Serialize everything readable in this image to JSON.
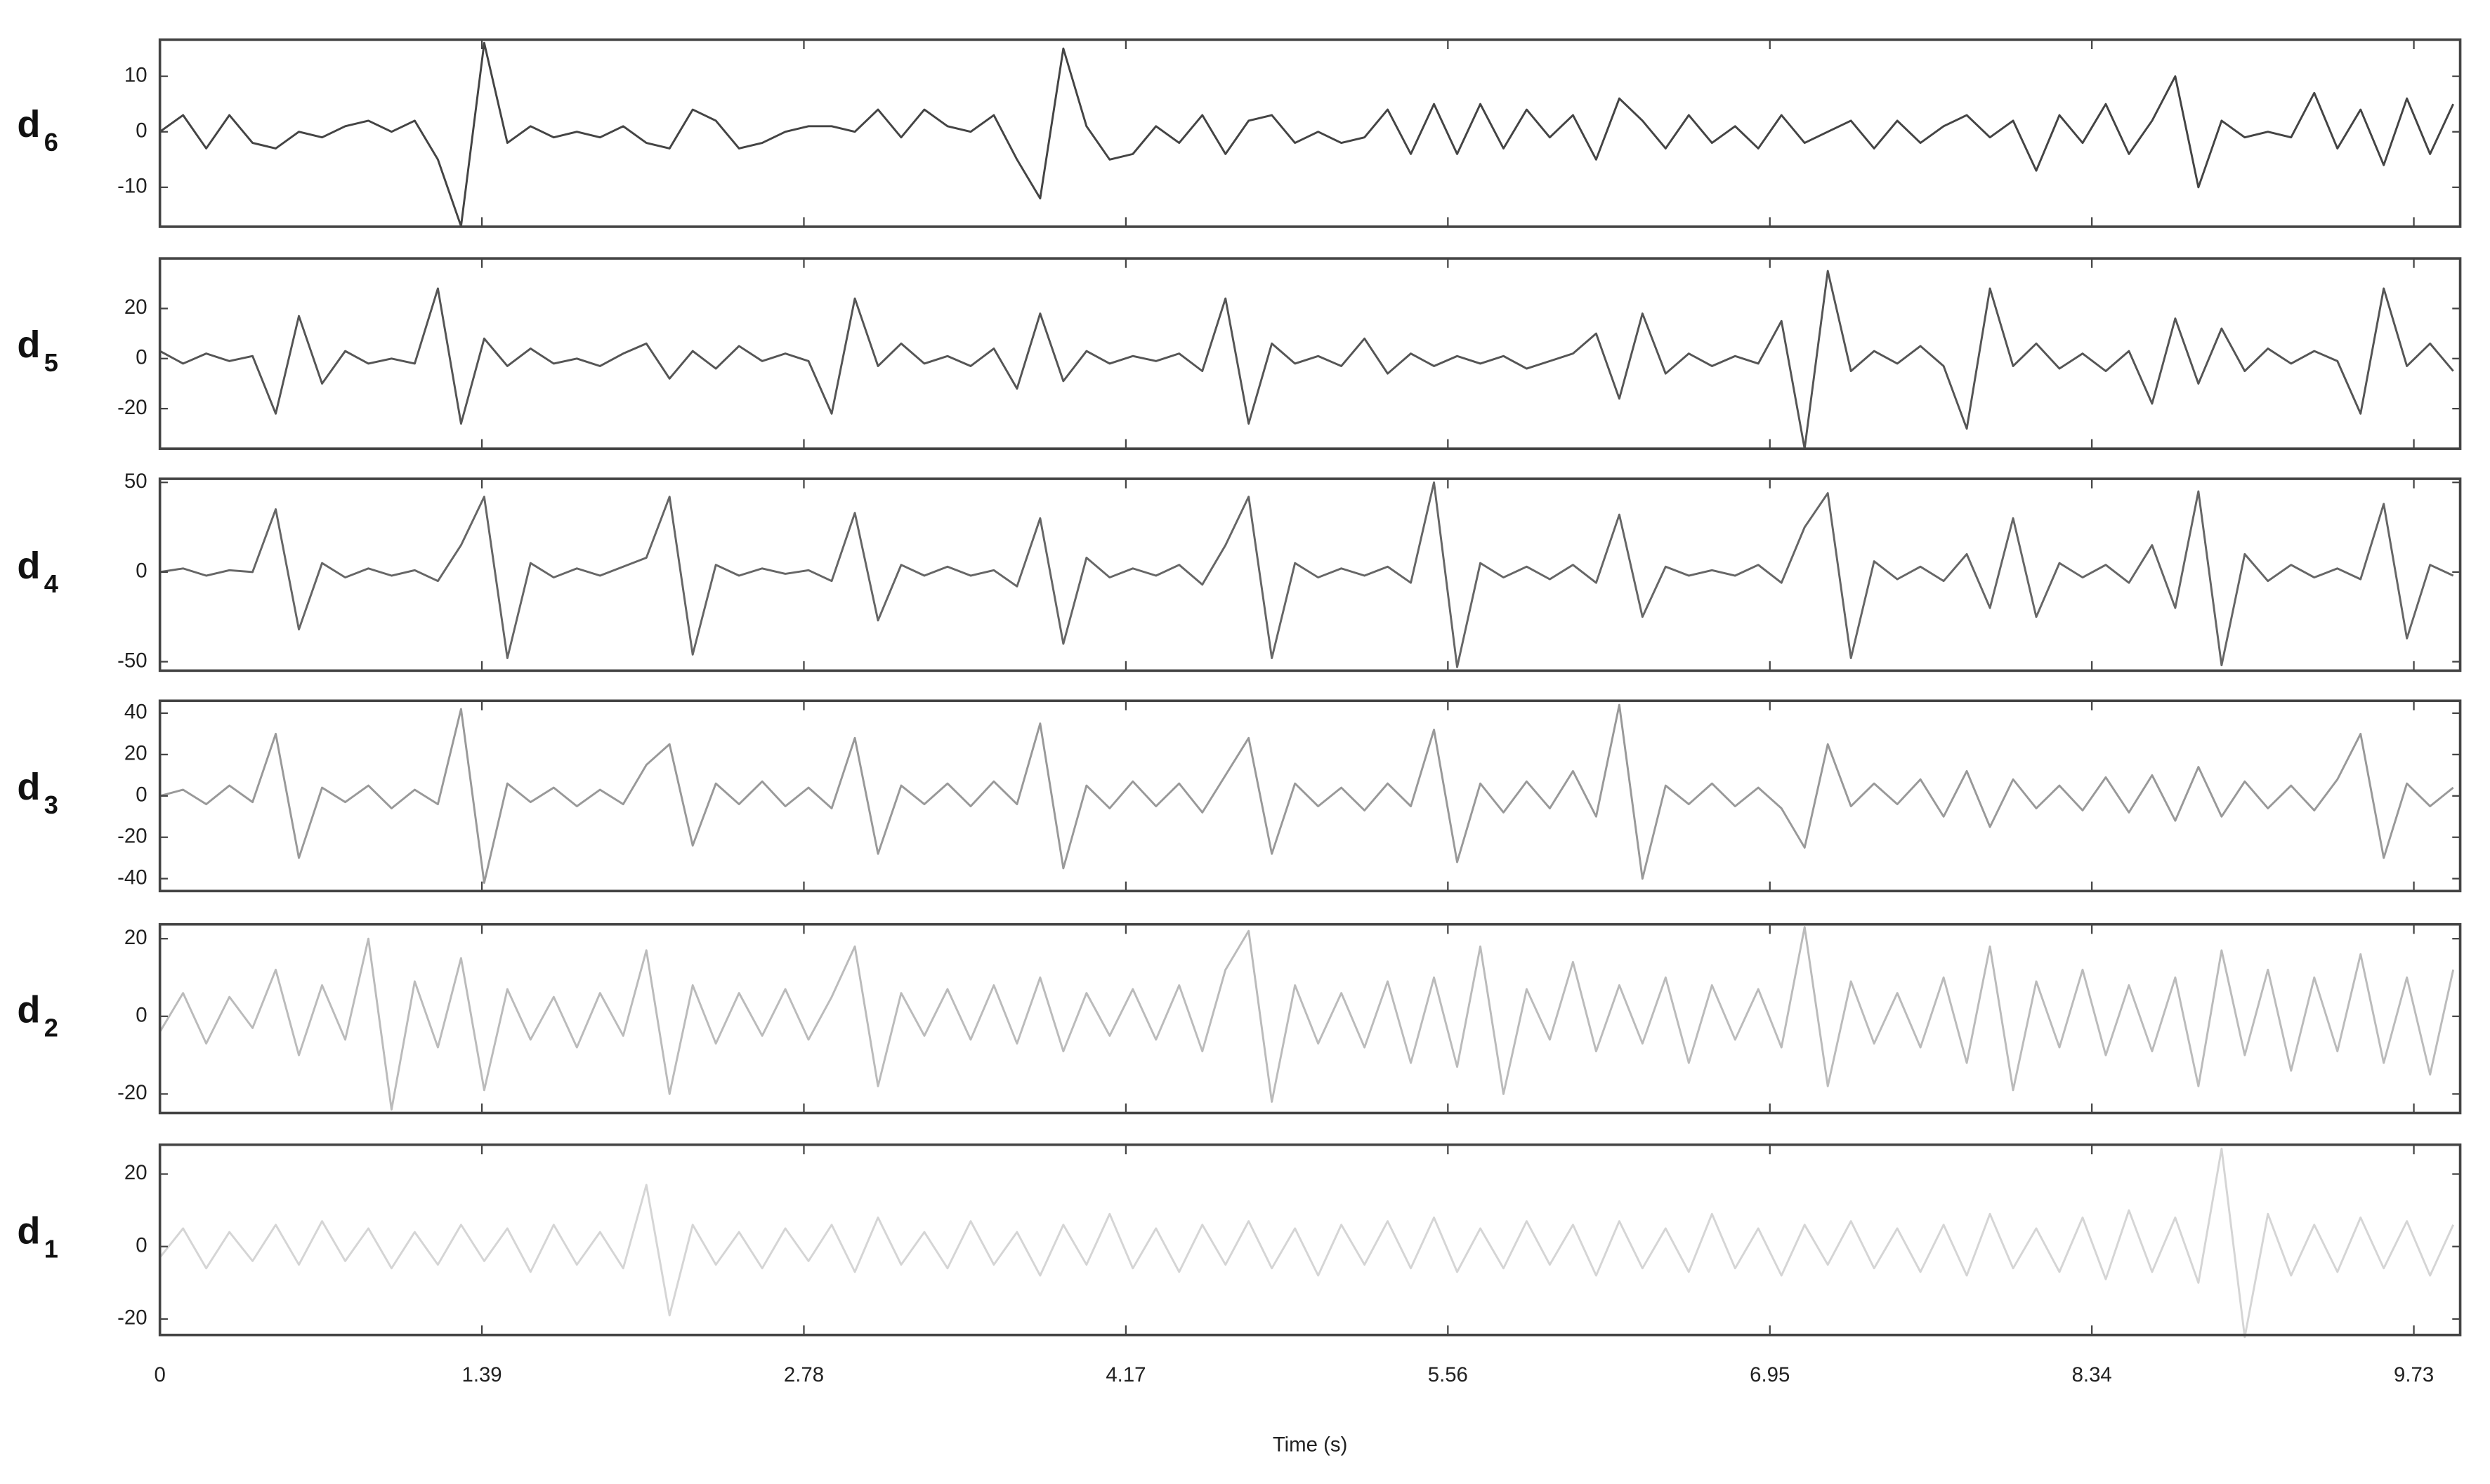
{
  "chart_data": [
    {
      "type": "line",
      "ylabel": "d",
      "ylabel_subscript": "6",
      "color": "#444444",
      "ylim": [
        -17.1,
        16.6
      ],
      "yticks": [
        -10,
        0,
        10
      ],
      "x": [
        0,
        0.1,
        0.2,
        0.3,
        0.4,
        0.5,
        0.6,
        0.7,
        0.8,
        0.9,
        1,
        1.1,
        1.2,
        1.3,
        1.4,
        1.5,
        1.6,
        1.7,
        1.8,
        1.9,
        2,
        2.1,
        2.2,
        2.3,
        2.4,
        2.5,
        2.6,
        2.7,
        2.8,
        2.9,
        3,
        3.1,
        3.2,
        3.3,
        3.4,
        3.5,
        3.6,
        3.7,
        3.8,
        3.9,
        4,
        4.1,
        4.2,
        4.3,
        4.4,
        4.5,
        4.6,
        4.7,
        4.8,
        4.9,
        5,
        5.1,
        5.2,
        5.3,
        5.4,
        5.5,
        5.6,
        5.7,
        5.8,
        5.9,
        6,
        6.1,
        6.2,
        6.3,
        6.4,
        6.5,
        6.6,
        6.7,
        6.8,
        6.9,
        7,
        7.1,
        7.2,
        7.3,
        7.4,
        7.5,
        7.6,
        7.7,
        7.8,
        7.9,
        8,
        8.1,
        8.2,
        8.3,
        8.4,
        8.5,
        8.6,
        8.7,
        8.8,
        8.9,
        9,
        9.1,
        9.2,
        9.3,
        9.4,
        9.5,
        9.6,
        9.7,
        9.8,
        9.9
      ],
      "values": [
        0,
        3,
        -3,
        3,
        -2,
        -3,
        0,
        -1,
        1,
        2,
        0,
        2,
        -5,
        -17,
        16,
        -2,
        1,
        -1,
        0,
        -1,
        1,
        -2,
        -3,
        4,
        2,
        -3,
        -2,
        0,
        1,
        1,
        0,
        4,
        -1,
        4,
        1,
        0,
        3,
        -5,
        -12,
        15,
        1,
        -5,
        -4,
        1,
        -2,
        3,
        -4,
        2,
        3,
        -2,
        0,
        -2,
        -1,
        4,
        -4,
        5,
        -4,
        5,
        -3,
        4,
        -1,
        3,
        -5,
        6,
        2,
        -3,
        3,
        -2,
        1,
        -3,
        3,
        -2,
        0,
        2,
        -3,
        2,
        -2,
        1,
        3,
        -1,
        2,
        -7,
        3,
        -2,
        5,
        -4,
        2,
        10,
        -10,
        2,
        -1,
        0,
        -1,
        7,
        -3,
        4,
        -6,
        6,
        -4,
        5
      ]
    },
    {
      "type": "line",
      "ylabel": "d",
      "ylabel_subscript": "5",
      "color": "#555555",
      "ylim": [
        -36,
        40
      ],
      "yticks": [
        -20,
        0,
        20
      ],
      "x": [
        0,
        0.1,
        0.2,
        0.3,
        0.4,
        0.5,
        0.6,
        0.7,
        0.8,
        0.9,
        1,
        1.1,
        1.2,
        1.3,
        1.4,
        1.5,
        1.6,
        1.7,
        1.8,
        1.9,
        2,
        2.1,
        2.2,
        2.3,
        2.4,
        2.5,
        2.6,
        2.7,
        2.8,
        2.9,
        3,
        3.1,
        3.2,
        3.3,
        3.4,
        3.5,
        3.6,
        3.7,
        3.8,
        3.9,
        4,
        4.1,
        4.2,
        4.3,
        4.4,
        4.5,
        4.6,
        4.7,
        4.8,
        4.9,
        5,
        5.1,
        5.2,
        5.3,
        5.4,
        5.5,
        5.6,
        5.7,
        5.8,
        5.9,
        6,
        6.1,
        6.2,
        6.3,
        6.4,
        6.5,
        6.6,
        6.7,
        6.8,
        6.9,
        7,
        7.1,
        7.2,
        7.3,
        7.4,
        7.5,
        7.6,
        7.7,
        7.8,
        7.9,
        8,
        8.1,
        8.2,
        8.3,
        8.4,
        8.5,
        8.6,
        8.7,
        8.8,
        8.9,
        9,
        9.1,
        9.2,
        9.3,
        9.4,
        9.5,
        9.6,
        9.7,
        9.8,
        9.9
      ],
      "values": [
        3,
        -2,
        2,
        -1,
        1,
        -22,
        17,
        -10,
        3,
        -2,
        0,
        -2,
        28,
        -26,
        8,
        -3,
        4,
        -2,
        0,
        -3,
        2,
        6,
        -8,
        3,
        -4,
        5,
        -1,
        2,
        -1,
        -22,
        24,
        -3,
        6,
        -2,
        1,
        -3,
        4,
        -12,
        18,
        -9,
        3,
        -2,
        1,
        -1,
        2,
        -5,
        24,
        -26,
        6,
        -2,
        1,
        -3,
        8,
        -6,
        2,
        -3,
        1,
        -2,
        1,
        -4,
        -1,
        2,
        10,
        -16,
        18,
        -6,
        2,
        -3,
        1,
        -2,
        15,
        -36,
        35,
        -5,
        3,
        -2,
        5,
        -3,
        -28,
        28,
        -3,
        6,
        -4,
        2,
        -5,
        3,
        -18,
        16,
        -10,
        12,
        -5,
        4,
        -2,
        3,
        -1,
        -22,
        28,
        -3,
        6,
        -5
      ]
    },
    {
      "type": "line",
      "ylabel": "d",
      "ylabel_subscript": "4",
      "color": "#666666",
      "ylim": [
        -55,
        52
      ],
      "yticks": [
        -50,
        0,
        50
      ],
      "x": [
        0,
        0.1,
        0.2,
        0.3,
        0.4,
        0.5,
        0.6,
        0.7,
        0.8,
        0.9,
        1,
        1.1,
        1.2,
        1.3,
        1.4,
        1.5,
        1.6,
        1.7,
        1.8,
        1.9,
        2,
        2.1,
        2.2,
        2.3,
        2.4,
        2.5,
        2.6,
        2.7,
        2.8,
        2.9,
        3,
        3.1,
        3.2,
        3.3,
        3.4,
        3.5,
        3.6,
        3.7,
        3.8,
        3.9,
        4,
        4.1,
        4.2,
        4.3,
        4.4,
        4.5,
        4.6,
        4.7,
        4.8,
        4.9,
        5,
        5.1,
        5.2,
        5.3,
        5.4,
        5.5,
        5.6,
        5.7,
        5.8,
        5.9,
        6,
        6.1,
        6.2,
        6.3,
        6.4,
        6.5,
        6.6,
        6.7,
        6.8,
        6.9,
        7,
        7.1,
        7.2,
        7.3,
        7.4,
        7.5,
        7.6,
        7.7,
        7.8,
        7.9,
        8,
        8.1,
        8.2,
        8.3,
        8.4,
        8.5,
        8.6,
        8.7,
        8.8,
        8.9,
        9,
        9.1,
        9.2,
        9.3,
        9.4,
        9.5,
        9.6,
        9.7,
        9.8,
        9.9
      ],
      "values": [
        0,
        2,
        -2,
        1,
        0,
        35,
        -32,
        5,
        -3,
        2,
        -2,
        1,
        -5,
        15,
        42,
        -48,
        5,
        -3,
        2,
        -2,
        3,
        8,
        42,
        -46,
        4,
        -2,
        2,
        -1,
        1,
        -5,
        33,
        -27,
        4,
        -2,
        3,
        -2,
        1,
        -8,
        30,
        -40,
        8,
        -3,
        2,
        -2,
        4,
        -7,
        15,
        42,
        -48,
        5,
        -3,
        2,
        -2,
        3,
        -6,
        50,
        -53,
        5,
        -3,
        3,
        -4,
        4,
        -6,
        32,
        -25,
        3,
        -2,
        1,
        -2,
        4,
        -6,
        25,
        44,
        -48,
        6,
        -4,
        3,
        -5,
        10,
        -20,
        30,
        -25,
        5,
        -3,
        4,
        -6,
        15,
        -20,
        45,
        -52,
        10,
        -5,
        4,
        -3,
        2,
        -4,
        38,
        -37,
        4,
        -2
      ]
    },
    {
      "type": "line",
      "ylabel": "d",
      "ylabel_subscript": "3",
      "color": "#999999",
      "ylim": [
        -46,
        46
      ],
      "yticks": [
        -40,
        -20,
        0,
        20,
        40
      ],
      "x": [
        0,
        0.1,
        0.2,
        0.3,
        0.4,
        0.5,
        0.6,
        0.7,
        0.8,
        0.9,
        1,
        1.1,
        1.2,
        1.3,
        1.4,
        1.5,
        1.6,
        1.7,
        1.8,
        1.9,
        2,
        2.1,
        2.2,
        2.3,
        2.4,
        2.5,
        2.6,
        2.7,
        2.8,
        2.9,
        3,
        3.1,
        3.2,
        3.3,
        3.4,
        3.5,
        3.6,
        3.7,
        3.8,
        3.9,
        4,
        4.1,
        4.2,
        4.3,
        4.4,
        4.5,
        4.6,
        4.7,
        4.8,
        4.9,
        5,
        5.1,
        5.2,
        5.3,
        5.4,
        5.5,
        5.6,
        5.7,
        5.8,
        5.9,
        6,
        6.1,
        6.2,
        6.3,
        6.4,
        6.5,
        6.6,
        6.7,
        6.8,
        6.9,
        7,
        7.1,
        7.2,
        7.3,
        7.4,
        7.5,
        7.6,
        7.7,
        7.8,
        7.9,
        8,
        8.1,
        8.2,
        8.3,
        8.4,
        8.5,
        8.6,
        8.7,
        8.8,
        8.9,
        9,
        9.1,
        9.2,
        9.3,
        9.4,
        9.5,
        9.6,
        9.7,
        9.8,
        9.9
      ],
      "values": [
        0,
        3,
        -4,
        5,
        -3,
        30,
        -30,
        4,
        -3,
        5,
        -6,
        3,
        -4,
        42,
        -42,
        6,
        -3,
        4,
        -5,
        3,
        -4,
        15,
        25,
        -24,
        6,
        -4,
        7,
        -5,
        4,
        -6,
        28,
        -28,
        5,
        -4,
        6,
        -5,
        7,
        -4,
        35,
        -35,
        5,
        -6,
        7,
        -5,
        6,
        -8,
        10,
        28,
        -28,
        6,
        -5,
        4,
        -7,
        6,
        -5,
        32,
        -32,
        6,
        -8,
        7,
        -6,
        12,
        -10,
        44,
        -40,
        5,
        -4,
        6,
        -5,
        4,
        -6,
        -25,
        25,
        -5,
        6,
        -4,
        8,
        -10,
        12,
        -15,
        8,
        -6,
        5,
        -7,
        9,
        -8,
        10,
        -12,
        14,
        -10,
        7,
        -6,
        5,
        -7,
        8,
        30,
        -30,
        6,
        -5,
        4
      ]
    },
    {
      "type": "line",
      "ylabel": "d",
      "ylabel_subscript": "2",
      "color": "#bbbbbb",
      "ylim": [
        -24.9,
        23.7
      ],
      "yticks": [
        -20,
        0,
        20
      ],
      "x": [
        0,
        0.1,
        0.2,
        0.3,
        0.4,
        0.5,
        0.6,
        0.7,
        0.8,
        0.9,
        1,
        1.1,
        1.2,
        1.3,
        1.4,
        1.5,
        1.6,
        1.7,
        1.8,
        1.9,
        2,
        2.1,
        2.2,
        2.3,
        2.4,
        2.5,
        2.6,
        2.7,
        2.8,
        2.9,
        3,
        3.1,
        3.2,
        3.3,
        3.4,
        3.5,
        3.6,
        3.7,
        3.8,
        3.9,
        4,
        4.1,
        4.2,
        4.3,
        4.4,
        4.5,
        4.6,
        4.7,
        4.8,
        4.9,
        5,
        5.1,
        5.2,
        5.3,
        5.4,
        5.5,
        5.6,
        5.7,
        5.8,
        5.9,
        6,
        6.1,
        6.2,
        6.3,
        6.4,
        6.5,
        6.6,
        6.7,
        6.8,
        6.9,
        7,
        7.1,
        7.2,
        7.3,
        7.4,
        7.5,
        7.6,
        7.7,
        7.8,
        7.9,
        8,
        8.1,
        8.2,
        8.3,
        8.4,
        8.5,
        8.6,
        8.7,
        8.8,
        8.9,
        9,
        9.1,
        9.2,
        9.3,
        9.4,
        9.5,
        9.6,
        9.7,
        9.8,
        9.9
      ],
      "values": [
        -4,
        6,
        -7,
        5,
        -3,
        12,
        -10,
        8,
        -6,
        20,
        -24,
        9,
        -8,
        15,
        -19,
        7,
        -6,
        5,
        -8,
        6,
        -5,
        17,
        -20,
        8,
        -7,
        6,
        -5,
        7,
        -6,
        5,
        18,
        -18,
        6,
        -5,
        7,
        -6,
        8,
        -7,
        10,
        -9,
        6,
        -5,
        7,
        -6,
        8,
        -9,
        12,
        22,
        -22,
        8,
        -7,
        6,
        -8,
        9,
        -12,
        10,
        -13,
        18,
        -20,
        7,
        -6,
        14,
        -9,
        8,
        -7,
        10,
        -12,
        8,
        -6,
        7,
        -8,
        23,
        -18,
        9,
        -7,
        6,
        -8,
        10,
        -12,
        18,
        -19,
        9,
        -8,
        12,
        -10,
        8,
        -9,
        10,
        -18,
        17,
        -10,
        12,
        -14,
        10,
        -9,
        16,
        -12,
        10,
        -15,
        12
      ]
    },
    {
      "type": "line",
      "ylabel": "d",
      "ylabel_subscript": "1",
      "color": "#d5d5d5",
      "ylim": [
        -24.4,
        28.1
      ],
      "yticks": [
        -20,
        0,
        20
      ],
      "x": [
        0,
        0.1,
        0.2,
        0.3,
        0.4,
        0.5,
        0.6,
        0.7,
        0.8,
        0.9,
        1,
        1.1,
        1.2,
        1.3,
        1.4,
        1.5,
        1.6,
        1.7,
        1.8,
        1.9,
        2,
        2.1,
        2.2,
        2.3,
        2.4,
        2.5,
        2.6,
        2.7,
        2.8,
        2.9,
        3,
        3.1,
        3.2,
        3.3,
        3.4,
        3.5,
        3.6,
        3.7,
        3.8,
        3.9,
        4,
        4.1,
        4.2,
        4.3,
        4.4,
        4.5,
        4.6,
        4.7,
        4.8,
        4.9,
        5,
        5.1,
        5.2,
        5.3,
        5.4,
        5.5,
        5.6,
        5.7,
        5.8,
        5.9,
        6,
        6.1,
        6.2,
        6.3,
        6.4,
        6.5,
        6.6,
        6.7,
        6.8,
        6.9,
        7,
        7.1,
        7.2,
        7.3,
        7.4,
        7.5,
        7.6,
        7.7,
        7.8,
        7.9,
        8,
        8.1,
        8.2,
        8.3,
        8.4,
        8.5,
        8.6,
        8.7,
        8.8,
        8.9,
        9,
        9.1,
        9.2,
        9.3,
        9.4,
        9.5,
        9.6,
        9.7,
        9.8,
        9.9
      ],
      "values": [
        -3,
        5,
        -6,
        4,
        -4,
        6,
        -5,
        7,
        -4,
        5,
        -6,
        4,
        -5,
        6,
        -4,
        5,
        -7,
        6,
        -5,
        4,
        -6,
        17,
        -19,
        6,
        -5,
        4,
        -6,
        5,
        -4,
        6,
        -7,
        8,
        -5,
        4,
        -6,
        7,
        -5,
        4,
        -8,
        6,
        -5,
        9,
        -6,
        5,
        -7,
        6,
        -5,
        7,
        -6,
        5,
        -8,
        6,
        -5,
        7,
        -6,
        8,
        -7,
        5,
        -6,
        7,
        -5,
        6,
        -8,
        7,
        -6,
        5,
        -7,
        9,
        -6,
        5,
        -8,
        6,
        -5,
        7,
        -6,
        5,
        -7,
        6,
        -8,
        9,
        -6,
        5,
        -7,
        8,
        -9,
        10,
        -7,
        8,
        -10,
        27,
        -25,
        9,
        -8,
        6,
        -7,
        8,
        -6,
        7,
        -8,
        6
      ],
      "xlim": [
        0,
        9.93
      ],
      "xticks": [
        0,
        1.39,
        2.78,
        4.17,
        5.56,
        6.95,
        8.34,
        9.73
      ],
      "xlabel": "Time (s)"
    }
  ]
}
